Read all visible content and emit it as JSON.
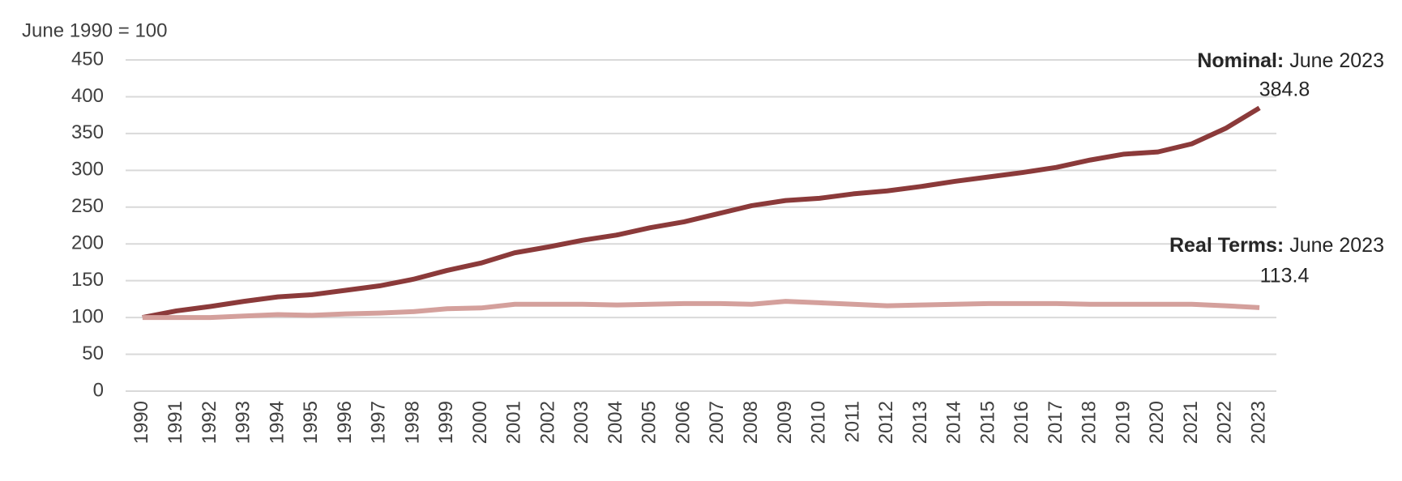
{
  "chart_data": {
    "type": "line",
    "subtitle": "June 1990 = 100",
    "categories": [
      "1990",
      "1991",
      "1992",
      "1993",
      "1994",
      "1995",
      "1996",
      "1997",
      "1998",
      "1999",
      "2000",
      "2001",
      "2002",
      "2003",
      "2004",
      "2005",
      "2006",
      "2007",
      "2008",
      "2009",
      "2010",
      "2011",
      "2012",
      "2013",
      "2014",
      "2015",
      "2016",
      "2017",
      "2018",
      "2019",
      "2020",
      "2021",
      "2022",
      "2023"
    ],
    "series": [
      {
        "name": "Nominal:",
        "color": "#8b3a3a",
        "annotation": "June 2023",
        "values": [
          100,
          109,
          115,
          122,
          128,
          131,
          137,
          143,
          152,
          164,
          174,
          188,
          196,
          205,
          212,
          222,
          230,
          241,
          252,
          259,
          262,
          268,
          272,
          278,
          285,
          291,
          297,
          304,
          314,
          322,
          325,
          336,
          357,
          384.8
        ]
      },
      {
        "name": "Real Terms:",
        "color": "#d4a09c",
        "annotation": "June 2023",
        "values": [
          100,
          100,
          100,
          102,
          104,
          103,
          105,
          106,
          108,
          112,
          113,
          118,
          118,
          118,
          117,
          118,
          119,
          119,
          118,
          122,
          120,
          118,
          116,
          117,
          118,
          119,
          119,
          119,
          118,
          118,
          118,
          118,
          116,
          113.4
        ]
      }
    ],
    "ylim": [
      0,
      450
    ],
    "yticks": [
      0,
      50,
      100,
      150,
      200,
      250,
      300,
      350,
      400,
      450
    ],
    "grid": true
  }
}
